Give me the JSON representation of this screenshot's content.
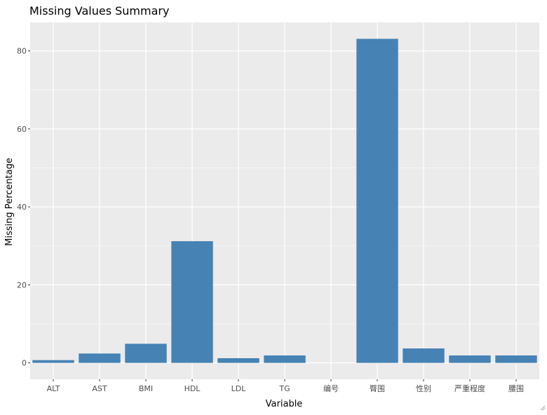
{
  "chart_data": {
    "type": "bar",
    "title": "Missing Values Summary",
    "xlabel": "Variable",
    "ylabel": "Missing Percentage",
    "categories": [
      "ALT",
      "AST",
      "BMI",
      "HDL",
      "LDL",
      "TG",
      "编号",
      "臀围",
      "性别",
      "严重程度",
      "腰围"
    ],
    "values": [
      0.7,
      2.4,
      4.9,
      31.2,
      1.2,
      1.9,
      0,
      83.1,
      3.7,
      1.9,
      1.9
    ],
    "yticks": [
      0,
      20,
      40,
      60,
      80
    ],
    "ylim": [
      -4.2,
      87.3
    ],
    "grid": true,
    "colors": {
      "bar": "#4682B4",
      "panel": "#EBEBEB",
      "grid": "#FFFFFF",
      "text": "#4D4D4D",
      "title": "#000000"
    }
  }
}
